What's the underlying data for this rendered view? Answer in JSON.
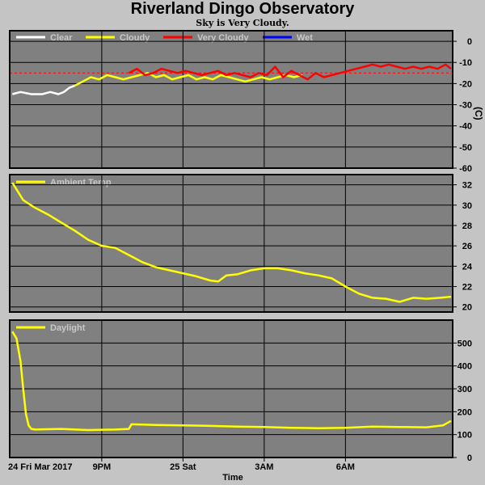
{
  "title": "Riverland Dingo Observatory",
  "subtitle": "Sky is Very Cloudy.",
  "colors": {
    "background": "#c4c4c4",
    "plot_bg": "#808080",
    "grid": "#000000"
  },
  "chart_data": [
    {
      "type": "line",
      "panel": "sky",
      "legend": [
        "Clear",
        "Cloudy",
        "Very Cloudy",
        "Wet"
      ],
      "legend_colors": [
        "#ffffff",
        "#ffff00",
        "#ff0000",
        "#0000ff"
      ],
      "ylim": [
        -60,
        5
      ],
      "yticks": [
        0,
        -10,
        -20,
        -30,
        -40,
        -50,
        -60
      ],
      "ylabel": "(C)",
      "threshold": {
        "value": -15,
        "color": "#ff0000",
        "style": "dashed"
      },
      "series": [
        {
          "name": "Clear",
          "color": "#ffffff",
          "x": [
            17.7,
            18.0,
            18.4,
            18.8,
            19.1,
            19.4,
            19.6,
            19.8,
            20.0
          ],
          "y": [
            -25,
            -24,
            -25,
            -25,
            -24,
            -25,
            -24,
            -22,
            -21
          ]
        },
        {
          "name": "Cloudy",
          "color": "#ffff00",
          "x": [
            20.0,
            20.3,
            20.6,
            20.9,
            21.2,
            21.5,
            21.8,
            22.1,
            22.4,
            22.7,
            23.0,
            23.3,
            23.6,
            23.9,
            24.2,
            24.5,
            24.8,
            25.1,
            25.4,
            25.7,
            26.0,
            26.3,
            26.6,
            26.9,
            27.2,
            27.5,
            27.8,
            28.1,
            28.4
          ],
          "y": [
            -21,
            -19,
            -17,
            -18,
            -16,
            -17,
            -18,
            -17,
            -16,
            -15,
            -17,
            -16,
            -18,
            -17,
            -16,
            -18,
            -17,
            -18,
            -16,
            -17,
            -18,
            -19,
            -18,
            -17,
            -18,
            -17,
            -16,
            -17,
            -16
          ]
        },
        {
          "name": "Very Cloudy",
          "color": "#ff0000",
          "x": [
            22.0,
            22.3,
            22.6,
            22.9,
            23.2,
            23.5,
            23.8,
            24.1,
            24.4,
            24.7,
            25.0,
            25.3,
            25.6,
            25.9,
            26.2,
            26.5,
            26.8,
            27.1,
            27.4,
            27.7,
            28.0,
            28.3,
            28.6,
            28.9,
            29.2,
            29.5,
            29.8,
            30.1,
            30.4,
            30.7,
            31.0,
            31.3,
            31.6,
            31.9,
            32.2,
            32.5,
            32.8,
            33.1,
            33.4,
            33.7,
            33.9
          ],
          "y": [
            -15,
            -13,
            -16,
            -15,
            -13,
            -14,
            -15,
            -14,
            -15,
            -16,
            -15,
            -14,
            -16,
            -15,
            -16,
            -17,
            -15,
            -16,
            -12,
            -17,
            -14,
            -16,
            -18,
            -15,
            -17,
            -16,
            -15,
            -14,
            -13,
            -12,
            -11,
            -12,
            -11,
            -12,
            -13,
            -12,
            -13,
            -12,
            -13,
            -11,
            -13
          ]
        },
        {
          "name": "Wet",
          "color": "#0000ff",
          "x": [],
          "y": []
        }
      ]
    },
    {
      "type": "line",
      "panel": "ambient",
      "legend": [
        "Ambient Temp"
      ],
      "legend_colors": [
        "#ffff00"
      ],
      "ylim": [
        19.5,
        33
      ],
      "yticks": [
        32,
        30,
        28,
        26,
        24,
        22,
        20
      ],
      "series": [
        {
          "name": "Ambient Temp",
          "color": "#ffff00",
          "x": [
            17.7,
            18.1,
            18.5,
            19.0,
            19.5,
            20.0,
            20.5,
            21.0,
            21.5,
            22.0,
            22.5,
            23.0,
            23.5,
            24.0,
            24.5,
            25.0,
            25.3,
            25.6,
            26.0,
            26.5,
            27.0,
            27.5,
            28.0,
            28.5,
            29.0,
            29.5,
            30.0,
            30.5,
            31.0,
            31.5,
            32.0,
            32.5,
            33.0,
            33.5,
            33.9
          ],
          "y": [
            32.2,
            30.5,
            29.8,
            29.1,
            28.3,
            27.5,
            26.6,
            26.0,
            25.8,
            25.1,
            24.4,
            23.9,
            23.6,
            23.3,
            23.0,
            22.6,
            22.5,
            23.1,
            23.2,
            23.6,
            23.8,
            23.8,
            23.6,
            23.3,
            23.1,
            22.8,
            22.0,
            21.3,
            20.9,
            20.8,
            20.5,
            20.9,
            20.8,
            20.9,
            21.0
          ]
        }
      ]
    },
    {
      "type": "line",
      "panel": "daylight",
      "legend": [
        "Daylight"
      ],
      "legend_colors": [
        "#ffff00"
      ],
      "ylim": [
        0,
        600
      ],
      "yticks": [
        500,
        400,
        300,
        200,
        100,
        0
      ],
      "series": [
        {
          "name": "Daylight",
          "color": "#ffff00",
          "x": [
            17.7,
            17.85,
            18.0,
            18.1,
            18.2,
            18.3,
            18.4,
            18.55,
            18.8,
            19.5,
            20.5,
            21.5,
            22.0,
            22.1,
            23.0,
            24.0,
            25.0,
            26.0,
            27.0,
            28.0,
            29.0,
            30.0,
            31.0,
            32.0,
            33.0,
            33.6,
            33.9
          ],
          "y": [
            550,
            520,
            420,
            300,
            190,
            140,
            125,
            122,
            123,
            125,
            120,
            122,
            125,
            145,
            142,
            140,
            138,
            135,
            133,
            130,
            128,
            130,
            135,
            133,
            132,
            140,
            160
          ]
        }
      ]
    }
  ],
  "x_axis": {
    "xlim": [
      17.6,
      33.96
    ],
    "ticks": [
      21,
      24,
      27,
      30
    ],
    "tick_labels": [
      "9PM",
      "25 Sat",
      "3AM",
      "6AM"
    ],
    "start_label": "24 Fri Mar 2017",
    "xlabel": "Time"
  }
}
